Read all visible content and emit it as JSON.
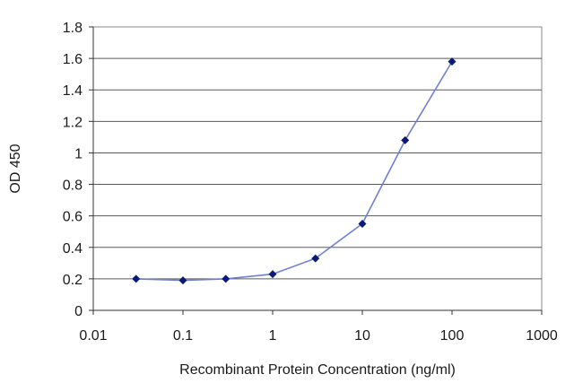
{
  "chart_data": {
    "type": "line",
    "xscale": "log",
    "xlabel": "Recombinant Protein Concentration (ng/ml)",
    "ylabel": "OD 450",
    "xlim": [
      0.01,
      1000
    ],
    "ylim": [
      0,
      1.8
    ],
    "x_ticks": [
      "0.01",
      "0.1",
      "1",
      "10",
      "100",
      "1000"
    ],
    "y_ticks": [
      "0",
      "0.2",
      "0.4",
      "0.6",
      "0.8",
      "1",
      "1.2",
      "1.4",
      "1.6",
      "1.8"
    ],
    "grid": "horizontal",
    "legend": "none",
    "series": [
      {
        "x": [
          0.03,
          0.1,
          0.3,
          1,
          3,
          10,
          30,
          100
        ],
        "y": [
          0.2,
          0.19,
          0.2,
          0.23,
          0.33,
          0.55,
          1.08,
          1.58
        ],
        "line_color": "#6f7fd6",
        "marker_color": "#0a1a7a"
      }
    ]
  }
}
